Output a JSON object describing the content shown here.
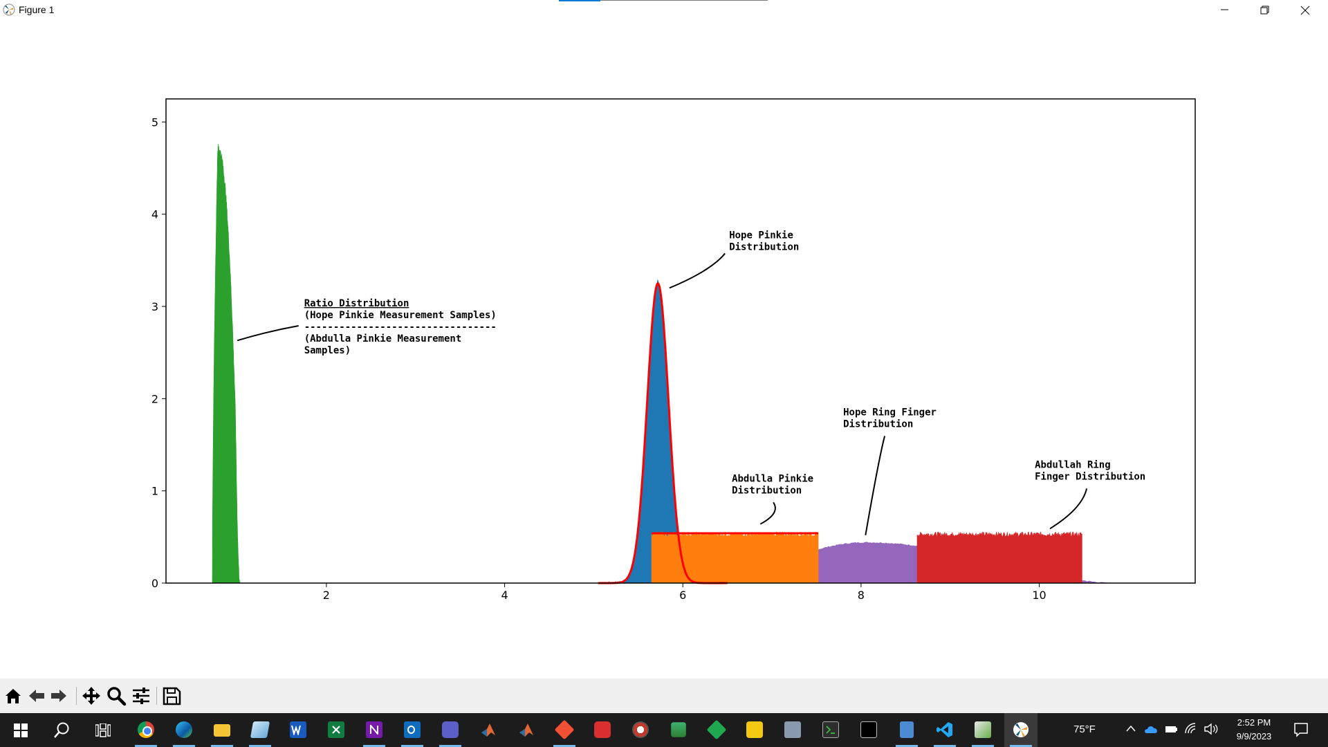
{
  "window": {
    "title": "Figure 1"
  },
  "chart_data": {
    "type": "histogram",
    "title": "",
    "xlabel": "",
    "ylabel": "",
    "xlim": [
      0.2,
      11.75
    ],
    "ylim": [
      0,
      5.25
    ],
    "xticks": [
      "2",
      "4",
      "6",
      "8",
      "10"
    ],
    "yticks": [
      "0",
      "1",
      "2",
      "3",
      "4",
      "5"
    ],
    "grid": false,
    "series": [
      {
        "shape": "ratio-peak",
        "color": "#2ca02c",
        "x_range": [
          0.72,
          1.03
        ],
        "peak_x": 0.78,
        "peak_y": 4.72
      },
      {
        "shape": "normal",
        "color": "#1f77b4",
        "mean": 5.72,
        "sd": 0.12,
        "peak_y": 3.27,
        "x_range": [
          5.1,
          6.4
        ]
      },
      {
        "shape": "uniform",
        "color": "#ff7f0e",
        "x_range": [
          5.65,
          7.52
        ],
        "y": 0.53
      },
      {
        "shape": "triangular",
        "color": "#9467bd",
        "x_range": [
          6.3,
          10.8
        ],
        "peak_x": 8.05,
        "peak_y": 0.44
      },
      {
        "shape": "uniform",
        "color": "#d62728",
        "x_range": [
          8.63,
          10.48
        ],
        "y": 0.53
      }
    ],
    "fits": [
      {
        "shape": "normal-curve",
        "color": "#ff0000",
        "mean": 5.72,
        "sd": 0.12,
        "peak_y": 3.25
      },
      {
        "shape": "flat-line",
        "color": "#ff0000",
        "x_range": [
          5.65,
          7.52
        ],
        "y": 0.54
      }
    ],
    "annotations": [
      {
        "lines": [
          "Ratio Distribution",
          "(Hope Pinkie Measurement Samples)",
          "---------------------------------",
          "(Abdulla Pinkie Measurement",
          "Samples)"
        ],
        "text_x": 1.75,
        "text_y": 3.0,
        "arrow_x": 1.0,
        "arrow_y": 2.63
      },
      {
        "lines": [
          "Hope Pinkie",
          "Distribution"
        ],
        "text_x": 6.52,
        "text_y": 3.74,
        "arrow_x": 5.85,
        "arrow_y": 3.2
      },
      {
        "lines": [
          "Abdulla Pinkie",
          "Distribution"
        ],
        "text_x": 6.55,
        "text_y": 1.1,
        "arrow_x": 6.87,
        "arrow_y": 0.64
      },
      {
        "lines": [
          "Hope Ring Finger",
          "Distribution"
        ],
        "text_x": 7.8,
        "text_y": 1.82,
        "arrow_x": 8.05,
        "arrow_y": 0.52
      },
      {
        "lines": [
          "Abdullah Ring",
          "Finger Distribution"
        ],
        "text_x": 9.95,
        "text_y": 1.25,
        "arrow_x": 10.12,
        "arrow_y": 0.59
      }
    ]
  },
  "toolbar": {
    "buttons": [
      "home-icon",
      "back-arrow-icon",
      "forward-arrow-icon",
      "pan-icon",
      "zoom-icon",
      "configure-subplots-icon",
      "save-icon"
    ]
  },
  "taskbar": {
    "weather": "75°F",
    "time": "2:52 PM",
    "date": "9/9/2023"
  }
}
